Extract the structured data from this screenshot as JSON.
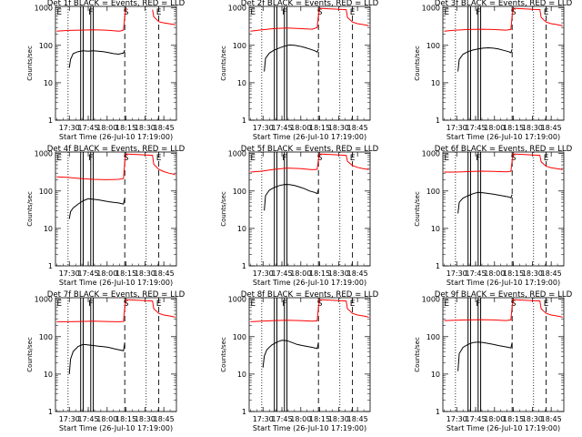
{
  "figure": {
    "xlabel": "Start Time (26-Jul-10 17:19:00)",
    "ylabel": "Counts/sec",
    "colors": {
      "lld": "#ff0000",
      "events": "#000000",
      "background": "#ffffff"
    }
  },
  "chart_data": [
    {
      "type": "line",
      "title": "Det 1f BLACK = Events, RED = LLD",
      "xlabel": "Start Time (26-Jul-10 17:19:00)",
      "ylabel": "Counts/sec",
      "x_ticks": [
        "17:30",
        "17:45",
        "18:00",
        "18:15",
        "18:30",
        "18:45"
      ],
      "y_ticks": [
        "1",
        "10",
        "100",
        "1000"
      ],
      "yscale": "log",
      "ylim": [
        1,
        1100
      ],
      "xlim_minutes_after_1719": [
        0,
        96
      ],
      "marker_letters": [
        "E",
        "F",
        "S",
        "E"
      ],
      "series": [
        {
          "color": "#ff0000",
          "t_min": [
            1,
            10,
            20,
            30,
            40,
            50,
            52,
            53,
            54,
            55,
            56,
            58,
            60,
            62,
            64,
            66,
            68,
            70,
            72,
            73,
            74,
            75,
            76,
            77,
            78,
            82,
            86,
            90,
            94,
            95
          ],
          "values": [
            240,
            250,
            255,
            260,
            255,
            240,
            242,
            250,
            255,
            600,
            980,
            null,
            null,
            null,
            null,
            null,
            null,
            null,
            null,
            null,
            null,
            null,
            null,
            900,
            580,
            430,
            400,
            380,
            360,
            350
          ]
        },
        {
          "color": "#000000",
          "t_min": [
            11,
            12,
            14,
            18,
            22,
            26,
            30,
            34,
            38,
            42,
            46,
            50,
            54,
            55
          ],
          "values": [
            25,
            42,
            60,
            68,
            72,
            70,
            72,
            70,
            68,
            64,
            60,
            58,
            62,
            75
          ]
        }
      ]
    },
    {
      "type": "line",
      "title": "Det 2f BLACK = Events, RED = LLD",
      "xlabel": "Start Time (26-Jul-10 17:19:00)",
      "ylabel": "Counts/sec",
      "x_ticks": [
        "17:30",
        "17:45",
        "18:00",
        "18:15",
        "18:30",
        "18:45"
      ],
      "y_ticks": [
        "1",
        "10",
        "100",
        "1000"
      ],
      "yscale": "log",
      "ylim": [
        1,
        1100
      ],
      "marker_letters": [
        "E",
        "F",
        "S",
        "E"
      ],
      "series": [
        {
          "color": "#ff0000",
          "t_min": [
            1,
            10,
            20,
            30,
            40,
            50,
            54,
            55,
            56,
            77,
            78,
            82,
            86,
            90,
            94,
            95
          ],
          "values": [
            240,
            260,
            280,
            290,
            280,
            270,
            300,
            650,
            980,
            900,
            560,
            420,
            380,
            360,
            340,
            330
          ]
        },
        {
          "color": "#000000",
          "t_min": [
            12,
            13,
            16,
            20,
            24,
            28,
            32,
            36,
            40,
            44,
            48,
            52,
            54,
            55
          ],
          "values": [
            20,
            45,
            62,
            75,
            85,
            95,
            102,
            100,
            95,
            88,
            80,
            72,
            66,
            80
          ]
        }
      ]
    },
    {
      "type": "line",
      "title": "Det 3f BLACK = Events, RED = LLD",
      "xlabel": "Start Time (26-Jul-10 17:19:00)",
      "ylabel": "Counts/sec",
      "x_ticks": [
        "17:30",
        "17:45",
        "18:00",
        "18:15",
        "18:30",
        "18:45"
      ],
      "y_ticks": [
        "1",
        "10",
        "100",
        "1000"
      ],
      "yscale": "log",
      "ylim": [
        1,
        1100
      ],
      "marker_letters": [
        "E",
        "F",
        "S",
        "E"
      ],
      "series": [
        {
          "color": "#ff0000",
          "t_min": [
            1,
            10,
            20,
            30,
            40,
            50,
            54,
            55,
            56,
            77,
            78,
            82,
            86,
            90,
            94,
            95
          ],
          "values": [
            240,
            255,
            265,
            270,
            265,
            255,
            265,
            620,
            980,
            900,
            560,
            420,
            380,
            360,
            340,
            330
          ]
        },
        {
          "color": "#000000",
          "t_min": [
            12,
            13,
            16,
            20,
            24,
            28,
            32,
            36,
            40,
            44,
            48,
            52,
            54,
            55
          ],
          "values": [
            20,
            42,
            58,
            68,
            75,
            80,
            84,
            86,
            84,
            80,
            74,
            68,
            64,
            78
          ]
        }
      ]
    },
    {
      "type": "line",
      "title": "Det 4f BLACK = Events, RED = LLD",
      "xlabel": "Start Time (26-Jul-10 17:19:00)",
      "ylabel": "Counts/sec",
      "x_ticks": [
        "17:30",
        "17:45",
        "18:00",
        "18:15",
        "18:30",
        "18:45"
      ],
      "y_ticks": [
        "1",
        "10",
        "100",
        "1000"
      ],
      "yscale": "log",
      "ylim": [
        1,
        1100
      ],
      "marker_letters": [
        "E",
        "F",
        "S",
        "E"
      ],
      "series": [
        {
          "color": "#ff0000",
          "t_min": [
            1,
            10,
            20,
            30,
            40,
            50,
            54,
            55,
            56,
            77,
            78,
            82,
            86,
            90,
            94,
            95
          ],
          "values": [
            240,
            230,
            215,
            205,
            200,
            205,
            215,
            600,
            980,
            900,
            520,
            380,
            330,
            300,
            280,
            270
          ]
        },
        {
          "color": "#000000",
          "t_min": [
            11,
            12,
            14,
            18,
            22,
            26,
            30,
            34,
            38,
            42,
            46,
            50,
            54,
            55
          ],
          "values": [
            18,
            28,
            35,
            45,
            55,
            62,
            60,
            58,
            55,
            52,
            50,
            48,
            45,
            65
          ]
        }
      ]
    },
    {
      "type": "line",
      "title": "Det 5f BLACK = Events, RED = LLD",
      "xlabel": "Start Time (26-Jul-10 17:19:00)",
      "ylabel": "Counts/sec",
      "x_ticks": [
        "17:30",
        "17:45",
        "18:00",
        "18:15",
        "18:30",
        "18:45"
      ],
      "y_ticks": [
        "1",
        "10",
        "100",
        "1000"
      ],
      "yscale": "log",
      "ylim": [
        1,
        1100
      ],
      "marker_letters": [
        "E",
        "F",
        "S",
        "E"
      ],
      "series": [
        {
          "color": "#ff0000",
          "t_min": [
            1,
            10,
            20,
            30,
            40,
            50,
            54,
            55,
            56,
            77,
            78,
            82,
            86,
            90,
            94,
            95
          ],
          "values": [
            320,
            340,
            380,
            410,
            400,
            370,
            380,
            700,
            980,
            900,
            620,
            480,
            430,
            400,
            380,
            370
          ]
        },
        {
          "color": "#000000",
          "t_min": [
            12,
            13,
            16,
            20,
            24,
            28,
            32,
            36,
            40,
            44,
            48,
            52,
            54,
            55
          ],
          "values": [
            30,
            75,
            105,
            125,
            140,
            150,
            148,
            140,
            128,
            115,
            100,
            92,
            85,
            110
          ]
        }
      ]
    },
    {
      "type": "line",
      "title": "Det 6f BLACK = Events, RED = LLD",
      "xlabel": "Start Time (26-Jul-10 17:19:00)",
      "ylabel": "Counts/sec",
      "x_ticks": [
        "17:30",
        "17:45",
        "18:00",
        "18:15",
        "18:30",
        "18:45"
      ],
      "y_ticks": [
        "1",
        "10",
        "100",
        "1000"
      ],
      "yscale": "log",
      "ylim": [
        1,
        1100
      ],
      "marker_letters": [
        "E",
        "F",
        "S",
        "E"
      ],
      "series": [
        {
          "color": "#ff0000",
          "t_min": [
            1,
            10,
            20,
            30,
            40,
            50,
            54,
            55,
            56,
            77,
            78,
            82,
            86,
            90,
            94,
            95
          ],
          "values": [
            320,
            320,
            330,
            340,
            335,
            325,
            335,
            650,
            980,
            900,
            600,
            460,
            420,
            400,
            380,
            370
          ]
        },
        {
          "color": "#000000",
          "t_min": [
            12,
            13,
            16,
            20,
            24,
            28,
            32,
            36,
            40,
            44,
            48,
            52,
            54,
            55
          ],
          "values": [
            25,
            50,
            65,
            75,
            85,
            92,
            90,
            86,
            82,
            78,
            74,
            70,
            66,
            80
          ]
        }
      ]
    },
    {
      "type": "line",
      "title": "Det 7f BLACK = Events, RED = LLD",
      "xlabel": "Start Time (26-Jul-10 17:19:00)",
      "ylabel": "Counts/sec",
      "x_ticks": [
        "17:30",
        "17:45",
        "18:00",
        "18:15",
        "18:30",
        "18:45"
      ],
      "y_ticks": [
        "1",
        "10",
        "100",
        "1000"
      ],
      "yscale": "log",
      "ylim": [
        1,
        1100
      ],
      "marker_letters": [
        "E",
        "F",
        "S",
        "E"
      ],
      "series": [
        {
          "color": "#ff0000",
          "t_min": [
            1,
            10,
            20,
            30,
            40,
            50,
            54,
            55,
            56,
            77,
            78,
            82,
            86,
            90,
            94,
            95
          ],
          "values": [
            250,
            250,
            255,
            260,
            255,
            250,
            255,
            600,
            980,
            900,
            560,
            420,
            380,
            360,
            340,
            330
          ]
        },
        {
          "color": "#000000",
          "t_min": [
            11,
            12,
            14,
            18,
            22,
            26,
            30,
            34,
            38,
            42,
            46,
            50,
            54,
            55
          ],
          "values": [
            10,
            25,
            40,
            55,
            62,
            60,
            58,
            56,
            54,
            52,
            48,
            45,
            42,
            70
          ]
        }
      ]
    },
    {
      "type": "line",
      "title": "Det 8f BLACK = Events, RED = LLD",
      "xlabel": "Start Time (26-Jul-10 17:19:00)",
      "ylabel": "Counts/sec",
      "x_ticks": [
        "17:30",
        "17:45",
        "18:00",
        "18:15",
        "18:30",
        "18:45"
      ],
      "y_ticks": [
        "1",
        "10",
        "100",
        "1000"
      ],
      "yscale": "log",
      "ylim": [
        1,
        1100
      ],
      "marker_letters": [
        "E",
        "F",
        "S",
        "E"
      ],
      "series": [
        {
          "color": "#ff0000",
          "t_min": [
            1,
            10,
            20,
            30,
            40,
            50,
            54,
            55,
            56,
            77,
            78,
            82,
            86,
            90,
            94,
            95
          ],
          "values": [
            250,
            260,
            270,
            275,
            270,
            260,
            265,
            620,
            980,
            900,
            560,
            420,
            380,
            360,
            340,
            330
          ]
        },
        {
          "color": "#000000",
          "t_min": [
            11,
            12,
            14,
            18,
            22,
            26,
            30,
            34,
            38,
            42,
            46,
            50,
            54,
            55
          ],
          "values": [
            15,
            30,
            45,
            60,
            72,
            80,
            78,
            70,
            62,
            58,
            55,
            52,
            48,
            70
          ]
        }
      ]
    },
    {
      "type": "line",
      "title": "Det 9f BLACK = Events, RED = LLD",
      "xlabel": "Start Time (26-Jul-10 17:19:00)",
      "ylabel": "Counts/sec",
      "x_ticks": [
        "17:30",
        "17:45",
        "18:00",
        "18:15",
        "18:30",
        "18:45"
      ],
      "y_ticks": [
        "1",
        "10",
        "100",
        "1000"
      ],
      "yscale": "log",
      "ylim": [
        1,
        1100
      ],
      "marker_letters": [
        "E",
        "F",
        "S",
        "E"
      ],
      "series": [
        {
          "color": "#ff0000",
          "t_min": [
            1,
            10,
            20,
            30,
            40,
            50,
            54,
            55,
            56,
            77,
            78,
            82,
            86,
            90,
            94,
            95
          ],
          "values": [
            270,
            275,
            280,
            285,
            280,
            270,
            280,
            650,
            980,
            900,
            560,
            420,
            380,
            360,
            340,
            330
          ]
        },
        {
          "color": "#000000",
          "t_min": [
            12,
            13,
            16,
            20,
            24,
            28,
            32,
            36,
            40,
            44,
            48,
            52,
            54,
            55
          ],
          "values": [
            12,
            35,
            52,
            62,
            70,
            72,
            70,
            66,
            62,
            58,
            55,
            52,
            50,
            70
          ]
        }
      ]
    }
  ]
}
